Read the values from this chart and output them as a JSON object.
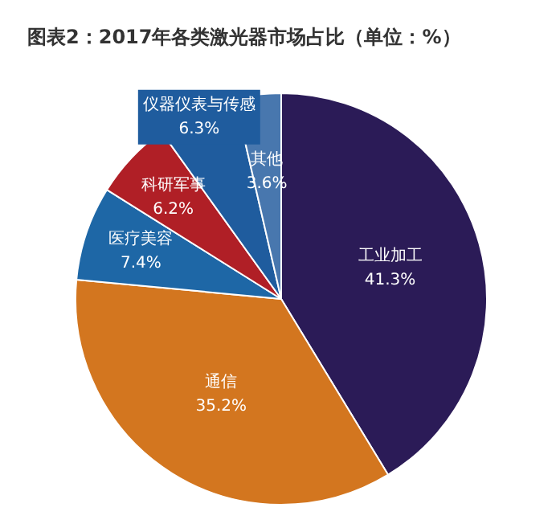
{
  "chart_data": {
    "type": "pie",
    "title": "图表2：2017年各类激光器市场占比（单位：%）",
    "categories": [
      "工业加工",
      "通信",
      "医疗美容",
      "科研军事",
      "仪器仪表与传感",
      "其他"
    ],
    "values": [
      41.3,
      35.2,
      7.4,
      6.2,
      6.3,
      3.6
    ],
    "colors": [
      "#2b1b57",
      "#d3761f",
      "#1e67a6",
      "#b01f26",
      "#1f5c9e",
      "#4877ae"
    ],
    "value_labels": [
      "41.3%",
      "35.2%",
      "7.4%",
      "6.2%",
      "6.3%",
      "3.6%"
    ],
    "legend": false
  }
}
